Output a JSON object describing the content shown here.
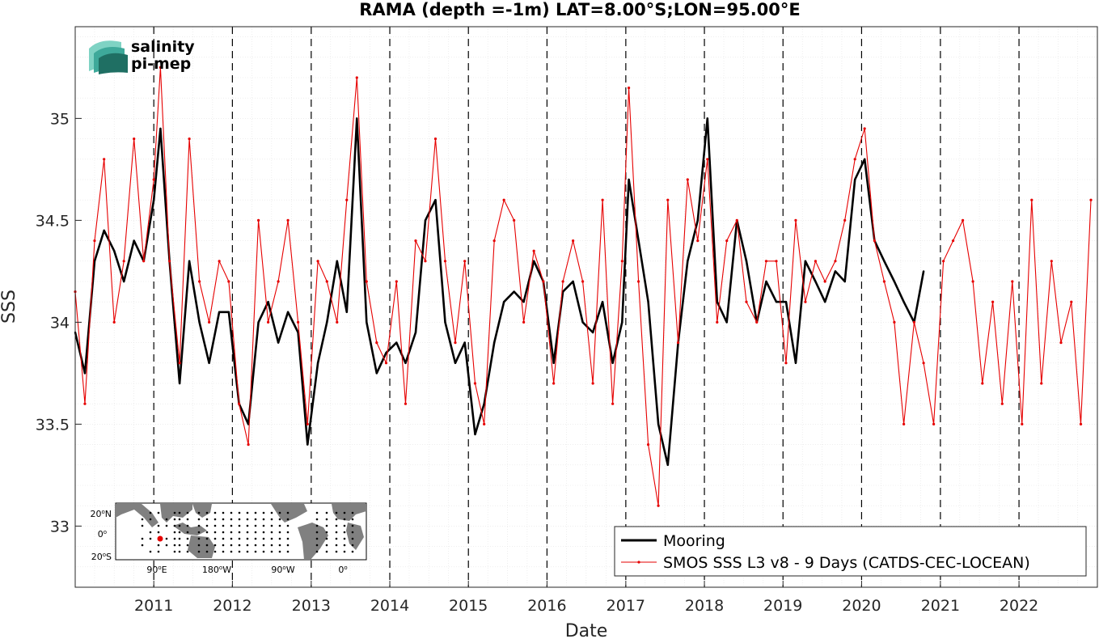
{
  "chart_data": {
    "type": "line",
    "title": "RAMA (depth =-1m) LAT=8.00°S;LON=95.00°E",
    "xlabel": "Date",
    "ylabel": "SSS",
    "xlim": [
      "2010-01-01",
      "2022-12-31"
    ],
    "ylim": [
      32.7,
      35.45
    ],
    "yticks": [
      33,
      33.5,
      34,
      34.5,
      35
    ],
    "ytick_labels": [
      "33",
      "33.5",
      "34",
      "34.5",
      "35"
    ],
    "xticks": [
      "2011",
      "2012",
      "2013",
      "2014",
      "2015",
      "2016",
      "2017",
      "2018",
      "2019",
      "2020",
      "2021",
      "2022"
    ],
    "grid": true,
    "legend_position": "bottom-right",
    "series": [
      {
        "name": "Mooring",
        "color": "#000000",
        "style": "line",
        "x": [
          "2010-01-01",
          "2010-02-15",
          "2010-04-01",
          "2010-05-15",
          "2010-07-01",
          "2010-08-15",
          "2010-10-01",
          "2010-11-15",
          "2011-01-01",
          "2011-02-01",
          "2011-03-15",
          "2011-05-01",
          "2011-06-15",
          "2011-08-01",
          "2011-09-15",
          "2011-11-01",
          "2011-12-15",
          "2012-02-01",
          "2012-03-15",
          "2012-05-01",
          "2012-06-15",
          "2012-08-01",
          "2012-09-15",
          "2012-11-01",
          "2012-12-15",
          "2013-02-01",
          "2013-03-15",
          "2013-05-01",
          "2013-06-15",
          "2013-08-01",
          "2013-09-15",
          "2013-11-01",
          "2013-12-15",
          "2014-02-01",
          "2014-03-15",
          "2014-05-01",
          "2014-06-15",
          "2014-08-01",
          "2014-09-15",
          "2014-11-01",
          "2014-12-15",
          "2015-02-01",
          "2015-03-15",
          "2015-05-01",
          "2015-06-15",
          "2015-08-01",
          "2015-09-15",
          "2015-11-01",
          "2015-12-15",
          "2016-02-01",
          "2016-03-15",
          "2016-05-01",
          "2016-06-15",
          "2016-08-01",
          "2016-09-15",
          "2016-11-01",
          "2016-12-15",
          "2017-01-15",
          "2017-03-01",
          "2017-04-15",
          "2017-06-01",
          "2017-07-15",
          "2017-09-01",
          "2017-10-15",
          "2017-12-01",
          "2018-01-15",
          "2018-03-01",
          "2018-04-15",
          "2018-06-01",
          "2018-07-15",
          "2018-09-01",
          "2018-10-15",
          "2018-12-01",
          "2019-01-15",
          "2019-03-01",
          "2019-04-15",
          "2019-06-01",
          "2019-07-15",
          "2019-09-01",
          "2019-10-15",
          "2019-12-01",
          "2020-01-15",
          "2020-03-01",
          "2020-04-15",
          "2020-06-01",
          "2020-07-15",
          "2020-09-01",
          "2020-10-15"
        ],
        "values": [
          33.95,
          33.75,
          34.3,
          34.45,
          34.35,
          34.2,
          34.4,
          34.3,
          34.6,
          34.95,
          34.3,
          33.7,
          34.3,
          34.0,
          33.8,
          34.05,
          34.05,
          33.6,
          33.5,
          34.0,
          34.1,
          33.9,
          34.05,
          33.95,
          33.4,
          33.8,
          34.0,
          34.3,
          34.05,
          35.0,
          34.0,
          33.75,
          33.85,
          33.9,
          33.8,
          33.95,
          34.5,
          34.6,
          34.0,
          33.8,
          33.9,
          33.45,
          33.6,
          33.9,
          34.1,
          34.15,
          34.1,
          34.3,
          34.2,
          33.8,
          34.15,
          34.2,
          34.0,
          33.95,
          34.1,
          33.8,
          34.0,
          34.7,
          34.4,
          34.1,
          33.5,
          33.3,
          33.9,
          34.3,
          34.5,
          35.0,
          34.1,
          34.0,
          34.5,
          34.3,
          34.0,
          34.2,
          34.1,
          34.1,
          33.8,
          34.3,
          34.2,
          34.1,
          34.25,
          34.2,
          34.7,
          34.8,
          34.4,
          34.3,
          34.2,
          34.1,
          34.0,
          34.25
        ]
      },
      {
        "name": "SMOS SSS L3 v8 - 9 Days (CATDS-CEC-LOCEAN)",
        "color": "#e60000",
        "style": "line-marker",
        "x": [
          "2010-01-01",
          "2010-02-15",
          "2010-04-01",
          "2010-05-15",
          "2010-07-01",
          "2010-08-15",
          "2010-10-01",
          "2010-11-15",
          "2011-01-01",
          "2011-02-01",
          "2011-03-15",
          "2011-05-01",
          "2011-06-15",
          "2011-08-01",
          "2011-09-15",
          "2011-11-01",
          "2011-12-15",
          "2012-02-01",
          "2012-03-15",
          "2012-05-01",
          "2012-06-15",
          "2012-08-01",
          "2012-09-15",
          "2012-11-01",
          "2012-12-15",
          "2013-02-01",
          "2013-03-15",
          "2013-05-01",
          "2013-06-15",
          "2013-08-01",
          "2013-09-15",
          "2013-11-01",
          "2013-12-15",
          "2014-02-01",
          "2014-03-15",
          "2014-05-01",
          "2014-06-15",
          "2014-08-01",
          "2014-09-15",
          "2014-11-01",
          "2014-12-15",
          "2015-02-01",
          "2015-03-15",
          "2015-05-01",
          "2015-06-15",
          "2015-08-01",
          "2015-09-15",
          "2015-11-01",
          "2015-12-15",
          "2016-02-01",
          "2016-03-15",
          "2016-05-01",
          "2016-06-15",
          "2016-08-01",
          "2016-09-15",
          "2016-11-01",
          "2016-12-15",
          "2017-01-15",
          "2017-03-01",
          "2017-04-15",
          "2017-06-01",
          "2017-07-15",
          "2017-09-01",
          "2017-10-15",
          "2017-12-01",
          "2018-01-15",
          "2018-03-01",
          "2018-04-15",
          "2018-06-01",
          "2018-07-15",
          "2018-09-01",
          "2018-10-15",
          "2018-12-01",
          "2019-01-15",
          "2019-03-01",
          "2019-04-15",
          "2019-06-01",
          "2019-07-15",
          "2019-09-01",
          "2019-10-15",
          "2019-12-01",
          "2020-01-15",
          "2020-03-01",
          "2020-04-15",
          "2020-06-01",
          "2020-07-15",
          "2020-09-01",
          "2020-10-15",
          "2020-12-01",
          "2021-01-15",
          "2021-03-01",
          "2021-04-15",
          "2021-06-01",
          "2021-07-15",
          "2021-09-01",
          "2021-10-15",
          "2021-12-01",
          "2022-01-15",
          "2022-03-01",
          "2022-04-15",
          "2022-06-01",
          "2022-07-15",
          "2022-09-01",
          "2022-10-15",
          "2022-12-01"
        ],
        "values": [
          34.15,
          33.6,
          34.4,
          34.8,
          34.0,
          34.3,
          34.9,
          34.3,
          34.7,
          35.25,
          34.3,
          33.8,
          34.9,
          34.2,
          34.0,
          34.3,
          34.2,
          33.6,
          33.4,
          34.5,
          34.0,
          34.2,
          34.5,
          34.0,
          33.5,
          34.3,
          34.2,
          34.0,
          34.6,
          35.2,
          34.2,
          33.9,
          33.8,
          34.2,
          33.6,
          34.4,
          34.3,
          34.9,
          34.3,
          33.9,
          34.3,
          33.7,
          33.5,
          34.4,
          34.6,
          34.5,
          34.0,
          34.35,
          34.2,
          33.7,
          34.2,
          34.4,
          34.2,
          33.7,
          34.6,
          33.6,
          34.3,
          35.15,
          34.2,
          33.4,
          33.1,
          34.6,
          33.9,
          34.7,
          34.4,
          34.8,
          34.0,
          34.4,
          34.5,
          34.1,
          34.0,
          34.3,
          34.3,
          33.8,
          34.5,
          34.1,
          34.3,
          34.2,
          34.3,
          34.5,
          34.8,
          34.95,
          34.4,
          34.2,
          34.0,
          33.5,
          34.0,
          33.8,
          33.5,
          34.3,
          34.4,
          34.5,
          34.2,
          33.7,
          34.1,
          33.6,
          34.2,
          33.5,
          34.6,
          33.7,
          34.3,
          33.9,
          34.1,
          33.5,
          34.6
        ]
      }
    ],
    "legend": [
      "Mooring",
      "SMOS SSS L3 v8 - 9 Days (CATDS-CEC-LOCEAN)"
    ]
  },
  "inset_map": {
    "lat_labels": [
      "20",
      "0",
      "20"
    ],
    "lat_suffixes": [
      "N",
      "",
      "S"
    ],
    "lon_labels": [
      "90",
      "180",
      "90",
      "0"
    ],
    "lon_suffixes": [
      "E",
      "W",
      "W",
      ""
    ],
    "land_color": "#808080",
    "mooring_marker_color": "#e60000"
  },
  "logo": {
    "line1": "salinity",
    "line2": "pi-mep",
    "color1": "#2bb5a0",
    "color2": "#1f6f63"
  }
}
